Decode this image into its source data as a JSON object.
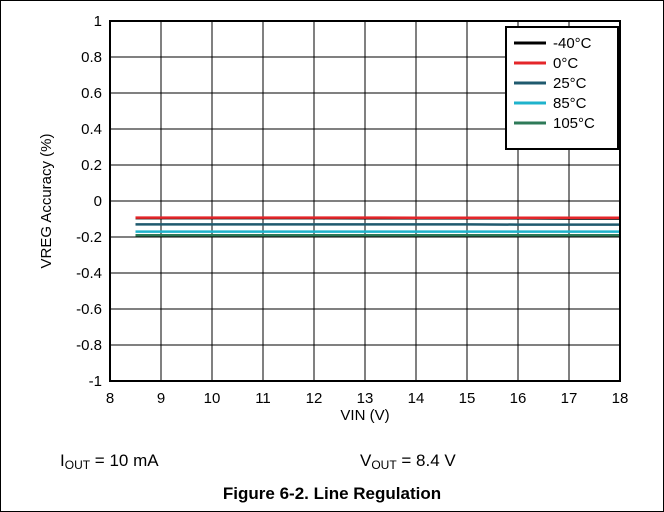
{
  "chart_data": {
    "type": "line",
    "xlabel": "VIN (V)",
    "ylabel": "VREG Accuracy (%)",
    "xlim": [
      8,
      18
    ],
    "ylim": [
      -1,
      1
    ],
    "xticks": [
      8,
      9,
      10,
      11,
      12,
      13,
      14,
      15,
      16,
      17,
      18
    ],
    "yticks": [
      1,
      0.8,
      0.6,
      0.4,
      0.2,
      0,
      -0.2,
      -0.4,
      -0.6,
      -0.8,
      -1
    ],
    "ytick_labels": [
      "1",
      "0.8",
      "0.6",
      "0.4",
      "0.2",
      "0",
      "-0.2",
      "-0.4",
      "-0.6",
      "-0.8",
      "-1"
    ],
    "grid": true,
    "legend_position": "top-right",
    "x": [
      8.5,
      9,
      10,
      11,
      12,
      13,
      14,
      15,
      16,
      17,
      18
    ],
    "series": [
      {
        "name": "-40°C",
        "color": "#000000",
        "values": [
          -0.095,
          -0.095,
          -0.095,
          -0.095,
          -0.095,
          -0.096,
          -0.096,
          -0.096,
          -0.096,
          -0.097,
          -0.097
        ]
      },
      {
        "name": "0°C",
        "color": "#e4262a",
        "values": [
          -0.092,
          -0.092,
          -0.092,
          -0.092,
          -0.092,
          -0.092,
          -0.093,
          -0.093,
          -0.093,
          -0.093,
          -0.093
        ]
      },
      {
        "name": "25°C",
        "color": "#1f5a6e",
        "values": [
          -0.13,
          -0.13,
          -0.13,
          -0.13,
          -0.13,
          -0.13,
          -0.13,
          -0.13,
          -0.131,
          -0.131,
          -0.131
        ]
      },
      {
        "name": "85°C",
        "color": "#1fb3cc",
        "values": [
          -0.17,
          -0.17,
          -0.17,
          -0.17,
          -0.17,
          -0.17,
          -0.17,
          -0.17,
          -0.17,
          -0.17,
          -0.17
        ]
      },
      {
        "name": "105°C",
        "color": "#2e7a58",
        "values": [
          -0.19,
          -0.19,
          -0.19,
          -0.19,
          -0.19,
          -0.19,
          -0.19,
          -0.19,
          -0.19,
          -0.19,
          -0.19
        ]
      }
    ]
  },
  "conditions": {
    "iout_prefix": "I",
    "iout_sub": "OUT",
    "iout_value": " = 10 mA",
    "vout_prefix": "V",
    "vout_sub": "OUT",
    "vout_value": " = 8.4 V"
  },
  "caption": "Figure 6-2. Line Regulation"
}
